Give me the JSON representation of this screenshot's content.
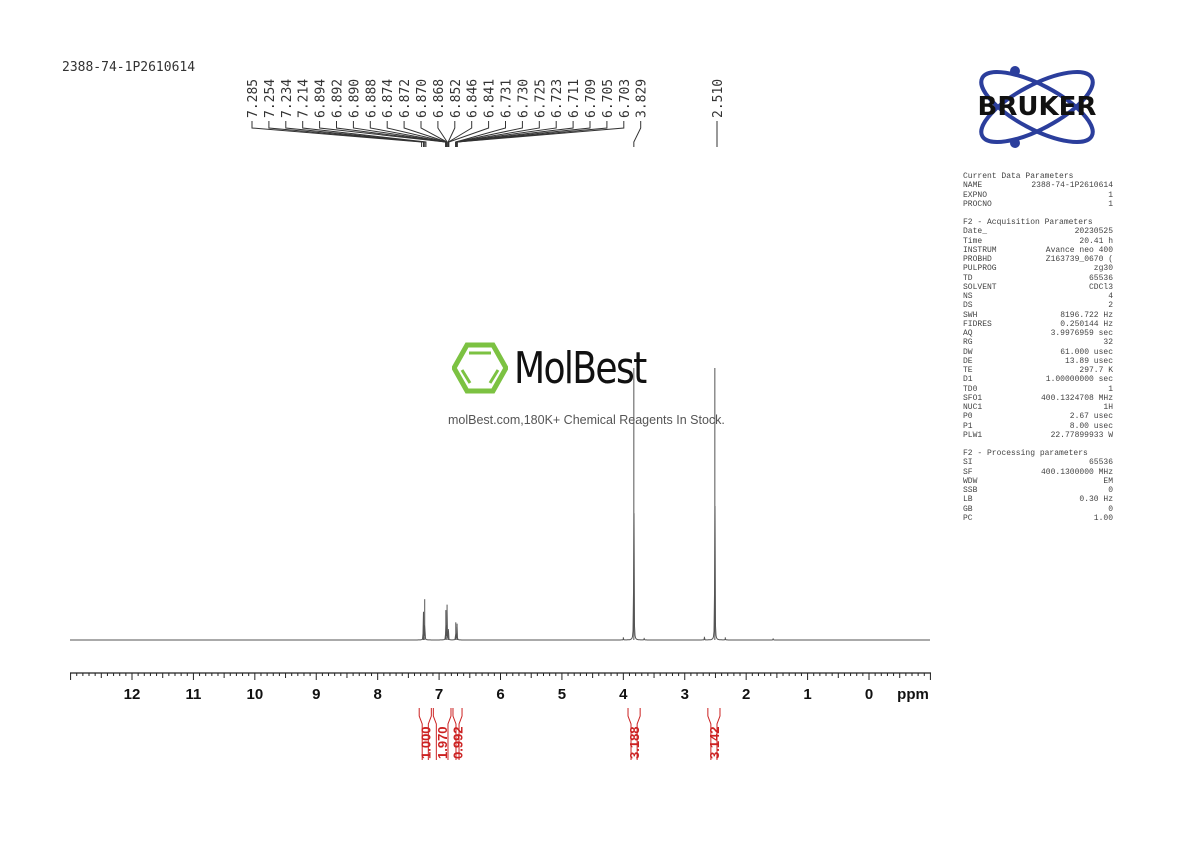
{
  "sample_name": "2388-74-1P2610614",
  "logo": {
    "brand": "BRUKER",
    "watermark": "MolBest",
    "slogan": "molBest.com,180K+ Chemical Reagents In Stock."
  },
  "parameters": {
    "sections": [
      {
        "title": "Current Data Parameters",
        "rows": [
          [
            "NAME",
            "2388-74-1P2610614"
          ],
          [
            "EXPNO",
            "1"
          ],
          [
            "PROCNO",
            "1"
          ]
        ]
      },
      {
        "title": "F2 - Acquisition Parameters",
        "rows": [
          [
            "Date_",
            "20230525"
          ],
          [
            "Time",
            "20.41 h"
          ],
          [
            "INSTRUM",
            "Avance neo 400"
          ],
          [
            "PROBHD",
            "Z163739_0670 ("
          ],
          [
            "PULPROG",
            "zg30"
          ],
          [
            "TD",
            "65536"
          ],
          [
            "SOLVENT",
            "CDCl3"
          ],
          [
            "NS",
            "4"
          ],
          [
            "DS",
            "2"
          ],
          [
            "SWH",
            "8196.722 Hz"
          ],
          [
            "FIDRES",
            "0.250144 Hz"
          ],
          [
            "AQ",
            "3.9976959 sec"
          ],
          [
            "RG",
            "32"
          ],
          [
            "DW",
            "61.000 usec"
          ],
          [
            "DE",
            "13.89 usec"
          ],
          [
            "TE",
            "297.7 K"
          ],
          [
            "D1",
            "1.00000000 sec"
          ],
          [
            "TD0",
            "1"
          ],
          [
            "SFO1",
            "400.1324708 MHz"
          ],
          [
            "NUC1",
            "1H"
          ],
          [
            "P0",
            "2.67 usec"
          ],
          [
            "P1",
            "8.00 usec"
          ],
          [
            "PLW1",
            "22.77899933 W"
          ]
        ]
      },
      {
        "title": "F2 - Processing parameters",
        "rows": [
          [
            "SI",
            "65536"
          ],
          [
            "SF",
            "400.1300000 MHz"
          ],
          [
            "WDW",
            "EM"
          ],
          [
            "SSB",
            "0"
          ],
          [
            "LB",
            "0.30 Hz"
          ],
          [
            "GB",
            "0"
          ],
          [
            "PC",
            "1.00"
          ]
        ]
      }
    ]
  },
  "chart_data": {
    "type": "line",
    "xlabel": "ppm",
    "xlim": [
      13,
      -1
    ],
    "x_reversed": true,
    "x_ticks": [
      "12",
      "11",
      "10",
      "9",
      "8",
      "7",
      "6",
      "5",
      "4",
      "3",
      "2",
      "1",
      "0"
    ],
    "grid": false,
    "line_color": "#555555",
    "integral_color": "#cc2222",
    "peak_labels": [
      "7.285",
      "7.254",
      "7.234",
      "7.214",
      "6.894",
      "6.892",
      "6.890",
      "6.888",
      "6.874",
      "6.872",
      "6.870",
      "6.868",
      "6.852",
      "6.846",
      "6.841",
      "6.731",
      "6.730",
      "6.725",
      "6.723",
      "6.711",
      "6.709",
      "6.705",
      "6.703",
      "3.829",
      "2.510"
    ],
    "peaks": [
      {
        "ppm": 7.254,
        "intensity": 0.1
      },
      {
        "ppm": 7.234,
        "intensity": 0.15
      },
      {
        "ppm": 7.26,
        "intensity": 0.02
      },
      {
        "ppm": 6.89,
        "intensity": 0.11
      },
      {
        "ppm": 6.87,
        "intensity": 0.13
      },
      {
        "ppm": 6.848,
        "intensity": 0.04
      },
      {
        "ppm": 6.728,
        "intensity": 0.065
      },
      {
        "ppm": 6.707,
        "intensity": 0.06
      },
      {
        "ppm": 3.829,
        "intensity": 1.0
      },
      {
        "ppm": 2.51,
        "intensity": 1.0
      },
      {
        "ppm": 4.0,
        "intensity": 0.01
      },
      {
        "ppm": 3.66,
        "intensity": 0.008
      },
      {
        "ppm": 2.68,
        "intensity": 0.012
      },
      {
        "ppm": 2.34,
        "intensity": 0.01
      },
      {
        "ppm": 1.56,
        "intensity": 0.006
      }
    ],
    "integrals": [
      {
        "from": 7.34,
        "to": 7.11,
        "value": "1.000"
      },
      {
        "from": 7.11,
        "to": 6.79,
        "value": "1.970"
      },
      {
        "from": 6.79,
        "to": 6.61,
        "value": "0.992"
      },
      {
        "from": 3.94,
        "to": 3.71,
        "value": "3.188"
      },
      {
        "from": 2.64,
        "to": 2.41,
        "value": "3.142"
      }
    ]
  }
}
